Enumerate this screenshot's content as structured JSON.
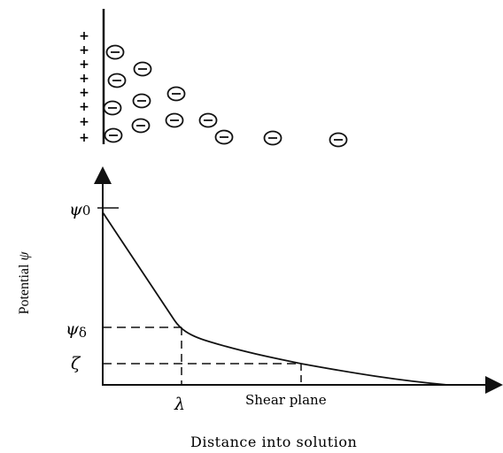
{
  "diagram": {
    "surface_charge_symbol": "+",
    "counter_ion_symbol": "−",
    "surface_charge_count": 8,
    "counter_ion_count": 15
  },
  "axes": {
    "ylabel_main": "Potential ",
    "ylabel_symbol": "ψ",
    "xlabel": "Distance into solution"
  },
  "y_ticks": {
    "psi0_symbol": "ψ",
    "psi0_sub": "0",
    "psid_symbol": "ψ",
    "psid_sub": "δ",
    "zeta": "ζ"
  },
  "x_ticks": {
    "lambda": "λ",
    "shear_plane": "Shear plane"
  },
  "colors": {
    "ink": "#111111",
    "background": "#ffffff"
  }
}
